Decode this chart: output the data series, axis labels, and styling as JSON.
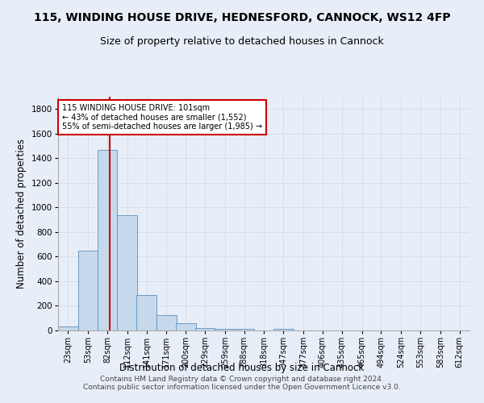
{
  "title": "115, WINDING HOUSE DRIVE, HEDNESFORD, CANNOCK, WS12 4FP",
  "subtitle": "Size of property relative to detached houses in Cannock",
  "xlabel": "Distribution of detached houses by size in Cannock",
  "ylabel": "Number of detached properties",
  "bar_color": "#c6d9ec",
  "bar_edge_color": "#5b8fbe",
  "bin_edges": [
    23,
    53,
    82,
    112,
    141,
    171,
    200,
    229,
    259,
    288,
    318,
    347,
    377,
    406,
    435,
    465,
    494,
    524,
    553,
    583,
    612
  ],
  "bar_heights": [
    35,
    650,
    1470,
    935,
    290,
    125,
    60,
    22,
    15,
    10,
    0,
    10,
    0,
    0,
    0,
    0,
    0,
    0,
    0,
    0
  ],
  "ylim": [
    0,
    1900
  ],
  "yticks": [
    0,
    200,
    400,
    600,
    800,
    1000,
    1200,
    1400,
    1600,
    1800
  ],
  "grid_color": "#d0d8e8",
  "background_color": "#e8eef8",
  "property_size": 101,
  "annotation_lines": [
    "115 WINDING HOUSE DRIVE: 101sqm",
    "← 43% of detached houses are smaller (1,552)",
    "55% of semi-detached houses are larger (1,985) →"
  ],
  "annotation_box_color": "#ffffff",
  "annotation_box_edgecolor": "#cc0000",
  "vline_color": "#cc0000",
  "footer_line1": "Contains HM Land Registry data © Crown copyright and database right 2024.",
  "footer_line2": "Contains public sector information licensed under the Open Government Licence v3.0.",
  "title_fontsize": 10,
  "subtitle_fontsize": 9,
  "tick_label_fontsize": 7,
  "ylabel_fontsize": 8.5,
  "xlabel_fontsize": 8.5,
  "footer_fontsize": 6.5
}
